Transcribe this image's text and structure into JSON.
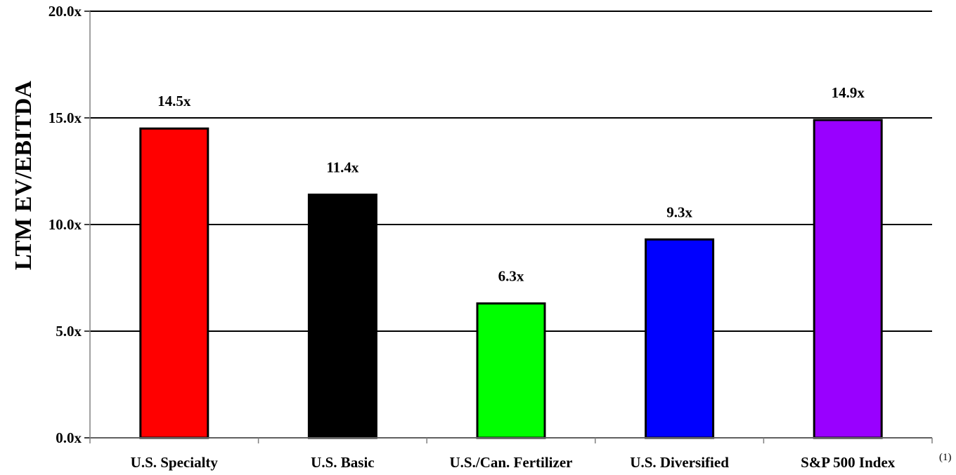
{
  "chart_data": {
    "type": "bar",
    "ylabel": "LTM EV/EBITDA",
    "xlabel": "",
    "ylim": [
      0,
      20
    ],
    "y_ticks": [
      0,
      5,
      10,
      15,
      20
    ],
    "y_tick_labels": [
      "0.0x",
      "5.0x",
      "10.0x",
      "15.0x",
      "20.0x"
    ],
    "grid": true,
    "categories": [
      "U.S. Specialty",
      "U.S. Basic",
      "U.S./Can. Fertilizer",
      "U.S. Diversified",
      "S&P 500 Index"
    ],
    "values": [
      14.5,
      11.4,
      6.3,
      9.3,
      14.9
    ],
    "data_labels": [
      "14.5x",
      "11.4x",
      "6.3x",
      "9.3x",
      "14.9x"
    ],
    "bar_colors": [
      "#ff0000",
      "#000000",
      "#00ff00",
      "#0000ff",
      "#9900ff"
    ],
    "footnote": "(1)"
  }
}
